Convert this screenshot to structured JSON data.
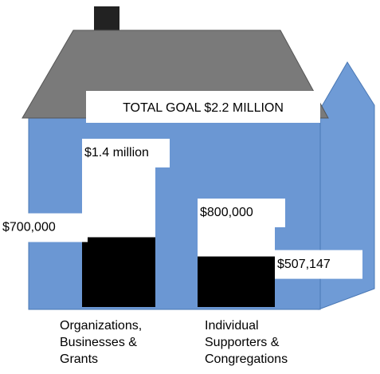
{
  "chart_data": {
    "type": "bar",
    "title": "TOTAL GOAL $2.2 MILLION",
    "categories": [
      "Organizations, Businesses & Grants",
      "Individual Supporters & Congregations"
    ],
    "series": [
      {
        "color": "#ffffff",
        "values": [
          1400000,
          800000
        ],
        "value_labels": [
          "$1.4 million",
          "$800,000"
        ]
      },
      {
        "color": "#000000",
        "values": [
          700000,
          507147
        ],
        "value_labels": [
          "$700,000",
          "$507,147"
        ]
      }
    ]
  }
}
